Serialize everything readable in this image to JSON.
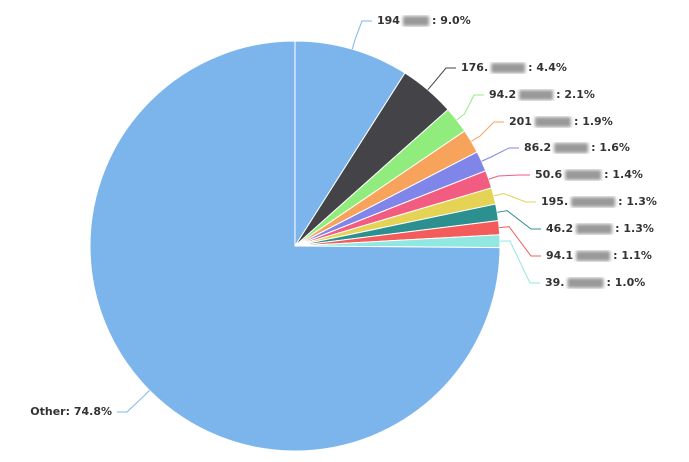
{
  "chart_data": {
    "type": "pie",
    "categories": [
      "194",
      "176.",
      "94.2",
      "201",
      "86.2",
      "50.6",
      "195.",
      "46.2",
      "94.1",
      "39.",
      "Other"
    ],
    "values": [
      9.0,
      4.4,
      2.1,
      1.9,
      1.6,
      1.4,
      1.3,
      1.3,
      1.1,
      1.0,
      74.8
    ],
    "value_labels": [
      "9.0%",
      "4.4%",
      "2.1%",
      "1.9%",
      "1.6%",
      "1.4%",
      "1.3%",
      "1.3%",
      "1.1%",
      "1.0%",
      "74.8%"
    ],
    "label_separator": ": ",
    "colors": [
      "#7cb5ec",
      "#434348",
      "#90ed7d",
      "#f7a35c",
      "#8085e9",
      "#f15c80",
      "#e4d354",
      "#2b908f",
      "#f45b5b",
      "#91e8e1",
      "#7cb5ec"
    ]
  }
}
